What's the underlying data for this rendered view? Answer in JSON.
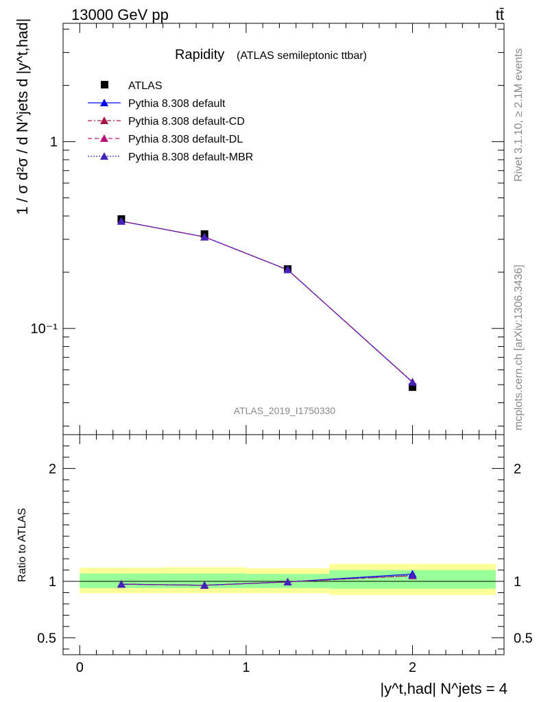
{
  "header": {
    "left": "13000 GeV pp",
    "right": "tt̄"
  },
  "side_labels": {
    "rivet": "Rivet 3.1.10, ≥ 2.1M events",
    "mcplots": "mcplots.cern.ch [arXiv:1306.3436]"
  },
  "chart_data": [
    {
      "panel": "main",
      "type": "line",
      "title": "Rapidity",
      "subtitle": "(ATLAS semileptonic ttbar)",
      "watermark": "ATLAS_2019_I1750330",
      "ylabel": "1 / σ d²σ / d N^jets d |y^t,had|",
      "yscale": "log",
      "ylim": [
        0.027,
        4.3
      ],
      "xlim": [
        -0.1,
        2.55
      ],
      "yticks": [
        {
          "value": 1,
          "label": "1"
        },
        {
          "value": 0.1,
          "label": "10⁻¹"
        }
      ],
      "legend_position": "top-left",
      "x": [
        0.25,
        0.75,
        1.25,
        2.0
      ],
      "x_bins": [
        [
          0,
          0.5
        ],
        [
          0.5,
          1.0
        ],
        [
          1.0,
          1.5
        ],
        [
          1.5,
          2.5
        ]
      ],
      "series": [
        {
          "name": "ATLAS",
          "marker": "square",
          "color": "#000000",
          "values": [
            0.385,
            0.32,
            0.208,
            0.0485
          ]
        },
        {
          "name": "Pythia 8.308 default",
          "marker": "triangle",
          "line": "solid",
          "color": "#0000ff",
          "values": [
            0.375,
            0.309,
            0.206,
            0.0515
          ]
        },
        {
          "name": "Pythia 8.308 default-CD",
          "marker": "triangle",
          "line": "dashdot",
          "color": "#aa1144",
          "values": [
            0.375,
            0.309,
            0.206,
            0.0517
          ]
        },
        {
          "name": "Pythia 8.308 default-DL",
          "marker": "triangle",
          "line": "dashed",
          "color": "#bb1177",
          "values": [
            0.375,
            0.309,
            0.206,
            0.0516
          ]
        },
        {
          "name": "Pythia 8.308 default-MBR",
          "marker": "triangle",
          "line": "dotted",
          "color": "#4422bb",
          "values": [
            0.375,
            0.309,
            0.206,
            0.0516
          ]
        }
      ]
    },
    {
      "panel": "ratio",
      "type": "line",
      "ylabel": "Ratio to ATLAS",
      "xlabel": "|y^t,had| N^jets = 4",
      "ylim": [
        0.35,
        2.3
      ],
      "xlim": [
        -0.1,
        2.55
      ],
      "yticks": [
        {
          "value": 2,
          "label": "2"
        },
        {
          "value": 1,
          "label": "1"
        },
        {
          "value": 0.5,
          "label": "0.5"
        }
      ],
      "xticks": [
        {
          "value": 0,
          "label": "0"
        },
        {
          "value": 1,
          "label": "1"
        },
        {
          "value": 2,
          "label": "2"
        }
      ],
      "bands": [
        {
          "x0": 0.0,
          "x1": 0.5,
          "inner": [
            0.94,
            1.07
          ],
          "outer": [
            0.895,
            1.12
          ]
        },
        {
          "x0": 0.5,
          "x1": 1.0,
          "inner": [
            0.94,
            1.07
          ],
          "outer": [
            0.895,
            1.125
          ]
        },
        {
          "x0": 1.0,
          "x1": 1.5,
          "inner": [
            0.94,
            1.065
          ],
          "outer": [
            0.895,
            1.115
          ]
        },
        {
          "x0": 1.5,
          "x1": 2.5,
          "inner": [
            0.935,
            1.1
          ],
          "outer": [
            0.88,
            1.155
          ]
        }
      ],
      "x": [
        0.25,
        0.75,
        1.25,
        2.0
      ],
      "series": [
        {
          "name": "Pythia 8.308 default",
          "color": "#0000ff",
          "line": "solid",
          "values": [
            0.975,
            0.965,
            0.995,
            1.065
          ]
        },
        {
          "name": "Pythia 8.308 default-CD",
          "color": "#aa1144",
          "line": "dashdot",
          "values": [
            0.975,
            0.965,
            0.995,
            1.05
          ]
        },
        {
          "name": "Pythia 8.308 default-DL",
          "color": "#bb1177",
          "line": "dashed",
          "values": [
            0.975,
            0.965,
            0.995,
            1.05
          ]
        },
        {
          "name": "Pythia 8.308 default-MBR",
          "color": "#4422bb",
          "line": "dotted",
          "values": [
            0.975,
            0.965,
            0.995,
            1.055
          ]
        }
      ]
    }
  ]
}
